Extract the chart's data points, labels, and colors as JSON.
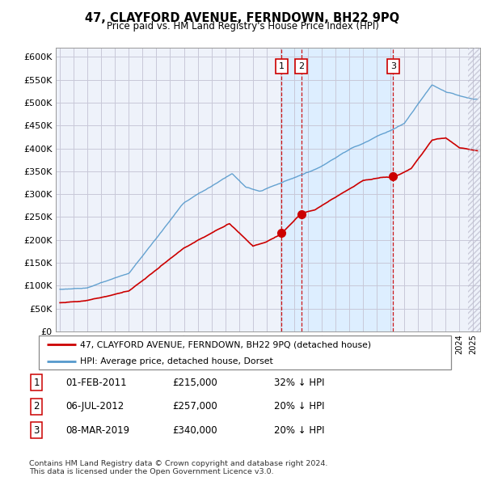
{
  "title": "47, CLAYFORD AVENUE, FERNDOWN, BH22 9PQ",
  "subtitle": "Price paid vs. HM Land Registry's House Price Index (HPI)",
  "ylim": [
    0,
    620000
  ],
  "yticks": [
    0,
    50000,
    100000,
    150000,
    200000,
    250000,
    300000,
    350000,
    400000,
    450000,
    500000,
    550000,
    600000
  ],
  "xlim_start": 1994.7,
  "xlim_end": 2025.5,
  "legend_line1": "47, CLAYFORD AVENUE, FERNDOWN, BH22 9PQ (detached house)",
  "legend_line2": "HPI: Average price, detached house, Dorset",
  "sale_color": "#cc0000",
  "hpi_color": "#5599cc",
  "vline_color": "#cc0000",
  "annotation_box_color": "#cc0000",
  "background_color": "#eef2fa",
  "grid_color": "#c8c8d8",
  "shade_color": "#ddeeff",
  "footer": "Contains HM Land Registry data © Crown copyright and database right 2024.\nThis data is licensed under the Open Government Licence v3.0.",
  "sales": [
    {
      "date": 2011.08,
      "price": 215000,
      "label": "1"
    },
    {
      "date": 2012.51,
      "price": 257000,
      "label": "2"
    },
    {
      "date": 2019.18,
      "price": 340000,
      "label": "3"
    }
  ],
  "sale_table": [
    {
      "num": "1",
      "date": "01-FEB-2011",
      "price": "£215,000",
      "note": "32% ↓ HPI"
    },
    {
      "num": "2",
      "date": "06-JUL-2012",
      "price": "£257,000",
      "note": "20% ↓ HPI"
    },
    {
      "num": "3",
      "date": "08-MAR-2019",
      "price": "£340,000",
      "note": "20% ↓ HPI"
    }
  ]
}
